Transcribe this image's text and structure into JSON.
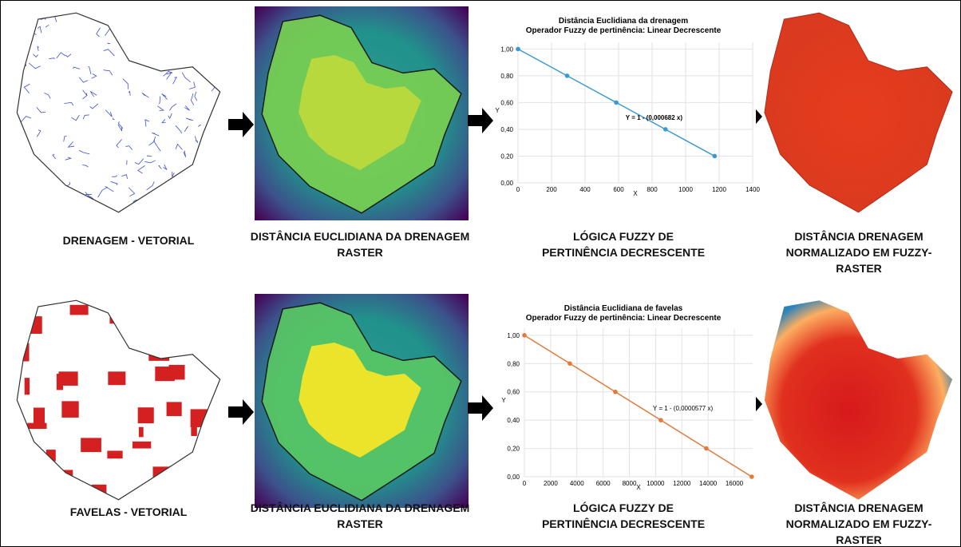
{
  "rows": [
    {
      "captions": [
        "DRENAGEM - VETORIAL",
        "DISTÂNCIA EUCLIDIANA DA DRENAGEM RASTER",
        "LÓGICA FUZZY DE PERTINÊNCIA DECRESCENTE",
        "DISTÂNCIA DRENAGEM NORMALIZADO EM FUZZY-RASTER"
      ]
    },
    {
      "captions": [
        "FAVELAS - VETORIAL",
        "DISTÂNCIA EUCLIDIANA DA DRENAGEM RASTER",
        "LÓGICA FUZZY DE PERTINÊNCIA DECRESCENTE",
        "DISTÂNCIA DRENAGEM NORMALIZADO EM FUZZY-RASTER"
      ]
    }
  ],
  "chart_data": [
    {
      "type": "line",
      "title": "Distância Euclidiana da drenagem",
      "subtitle": "Operador Fuzzy de pertinência:  Linear Decrescente",
      "x_label": "X",
      "y_label": "Y",
      "annotation": "Y = 1 - (0,000682 x)",
      "color": "#3a9ad0",
      "x": [
        0,
        293,
        586,
        880,
        1173
      ],
      "values": [
        1,
        0.8,
        0.6,
        0.4,
        0.2
      ],
      "xlim": [
        0,
        1400
      ],
      "ylim": [
        0,
        1.05
      ],
      "xticks": [
        0,
        200,
        400,
        600,
        800,
        1000,
        1200,
        1400
      ],
      "yticks": [
        {
          "value": 0,
          "label": "0,00"
        },
        {
          "value": 0.2,
          "label": "0,20"
        },
        {
          "value": 0.4,
          "label": "0,40"
        },
        {
          "value": 0.6,
          "label": "0,60"
        },
        {
          "value": 0.8,
          "label": "0,80"
        },
        {
          "value": 1,
          "label": "1,00"
        }
      ],
      "grid": true
    },
    {
      "type": "line",
      "title": "Distância Euclidiana de favelas",
      "subtitle": "Operador Fuzzy de pertinência:  Linear Decrescente",
      "x_label": "X",
      "y_label": "Y",
      "annotation": "Y = 1 - (0,0000577 x)",
      "color": "#e07b39",
      "x": [
        0,
        3466,
        6932,
        10398,
        13864,
        17330
      ],
      "values": [
        1,
        0.8,
        0.6,
        0.4,
        0.2,
        0
      ],
      "xlim": [
        0,
        17400
      ],
      "ylim": [
        0,
        1.05
      ],
      "xticks": [
        0,
        2000,
        4000,
        6000,
        8000,
        10000,
        12000,
        14000,
        16000
      ],
      "yticks": [
        {
          "value": 0,
          "label": "0,00"
        },
        {
          "value": 0.2,
          "label": "0,20"
        },
        {
          "value": 0.4,
          "label": "0,40"
        },
        {
          "value": 0.6,
          "label": "0,60"
        },
        {
          "value": 0.8,
          "label": "0,80"
        },
        {
          "value": 1,
          "label": "1,00"
        }
      ],
      "grid": true
    }
  ]
}
